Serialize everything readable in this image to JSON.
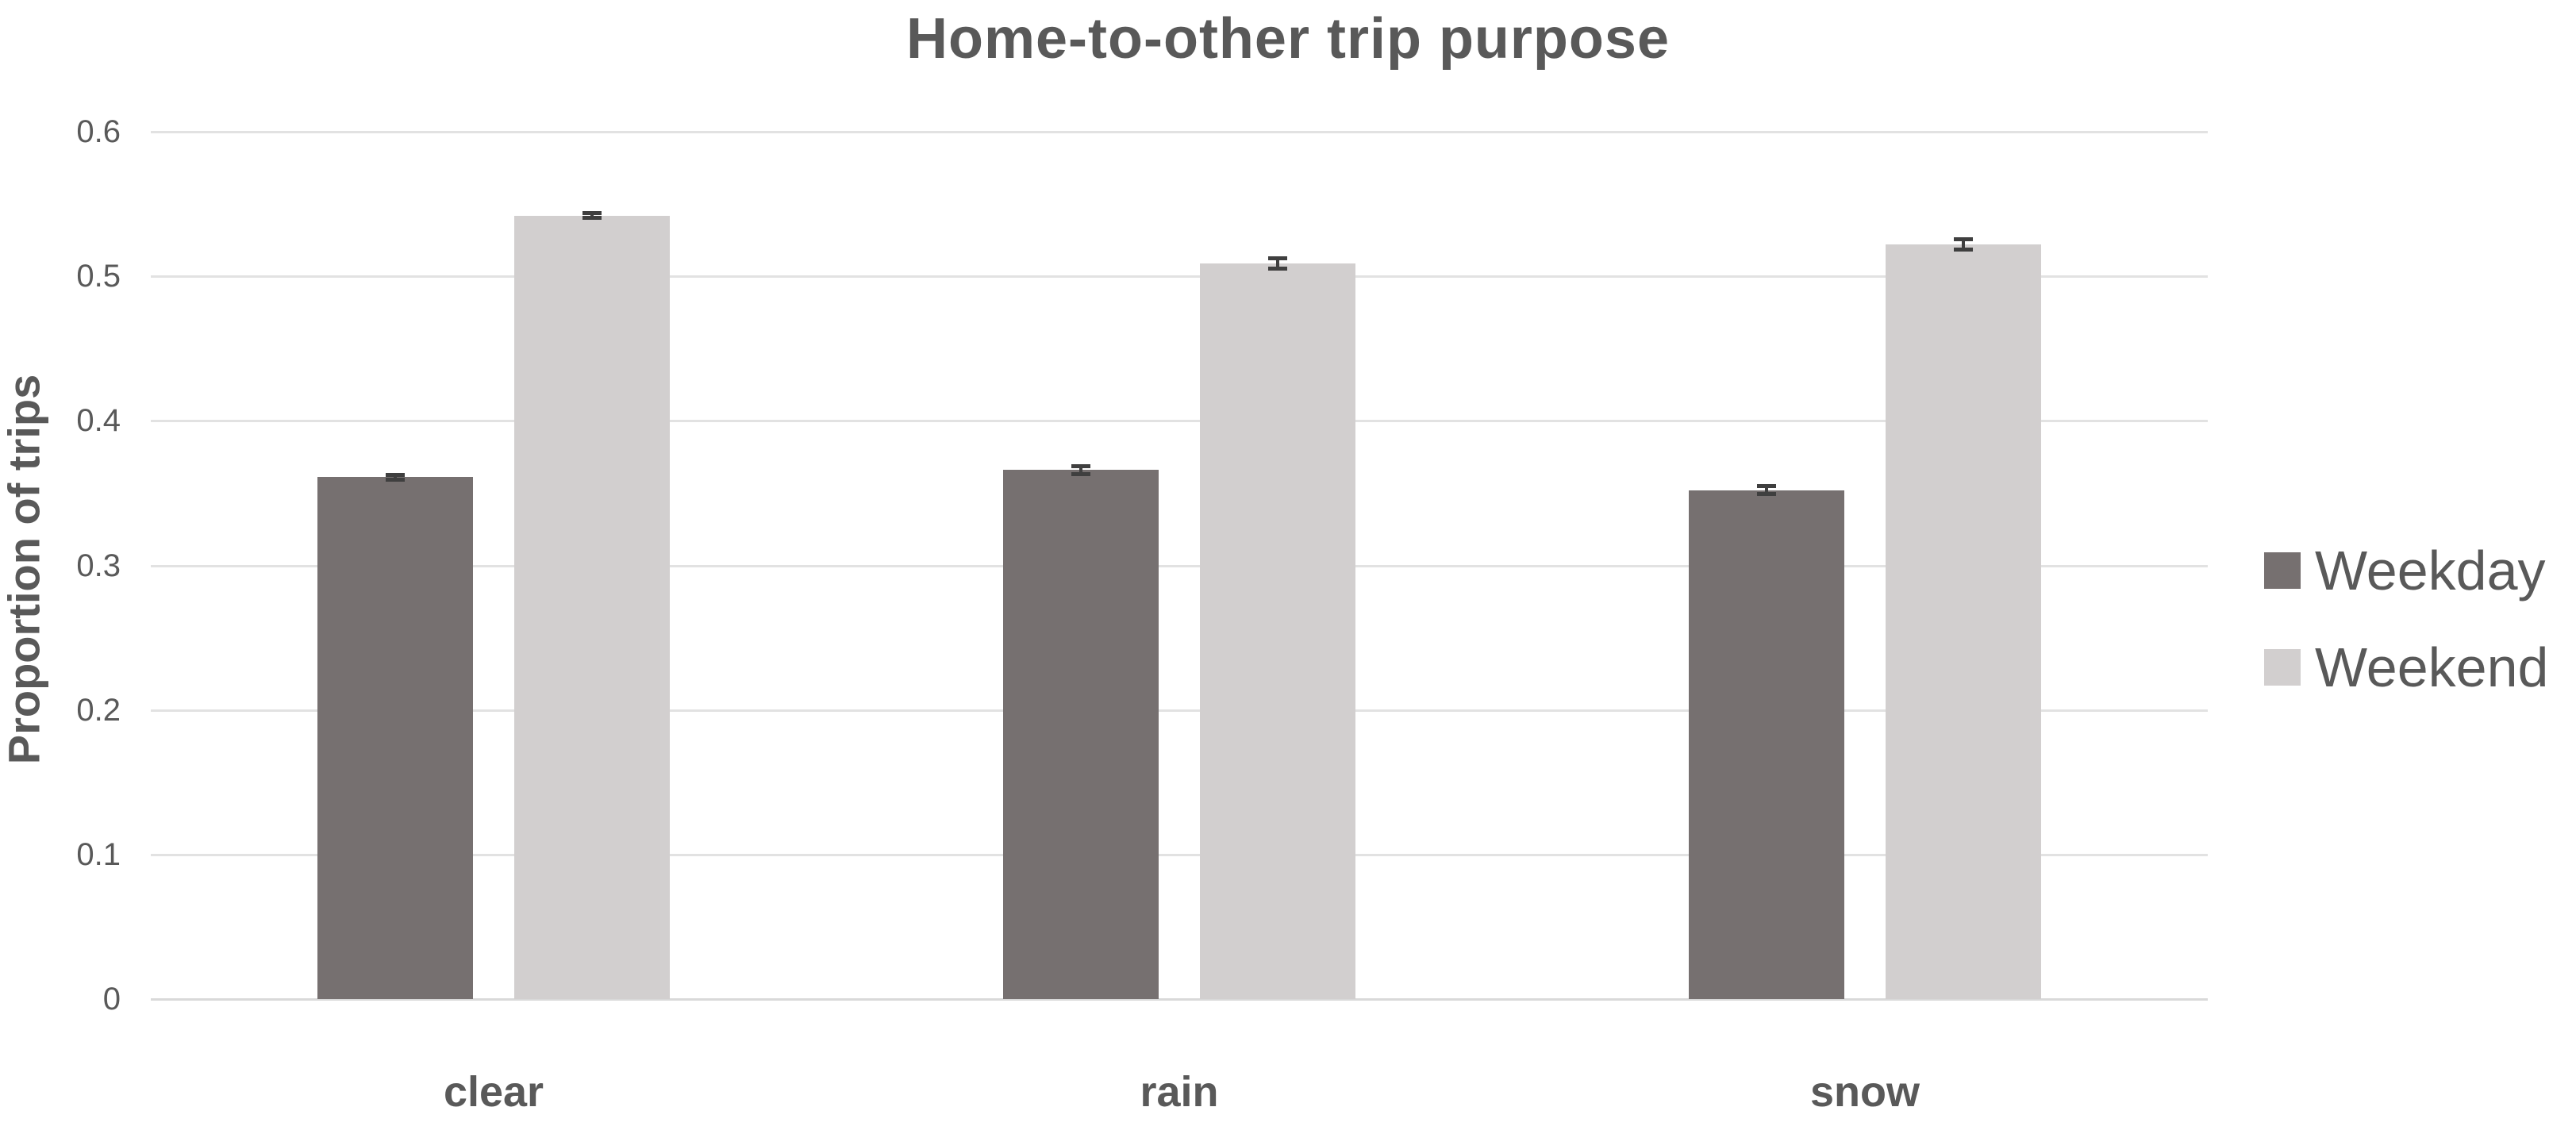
{
  "chart_data": {
    "type": "bar",
    "title": "Home-to-other trip purpose",
    "xlabel": "",
    "ylabel": "Proportion of trips",
    "ylim": [
      0,
      0.6
    ],
    "ytick_labels": [
      "0",
      "0.1",
      "0.2",
      "0.3",
      "0.4",
      "0.5",
      "0.6"
    ],
    "categories": [
      "clear",
      "rain",
      "snow"
    ],
    "series": [
      {
        "name": "Weekday",
        "color": "#767070",
        "values": [
          0.361,
          0.366,
          0.352
        ],
        "errors": [
          0.003,
          0.004,
          0.004
        ]
      },
      {
        "name": "Weekend",
        "color": "#d2cfcf",
        "values": [
          0.542,
          0.509,
          0.522
        ],
        "errors": [
          0.003,
          0.005,
          0.005
        ]
      }
    ],
    "error_bar_color": "#3f3f3f",
    "grid": true,
    "legend_position": "right"
  },
  "colors": {
    "text": "#595959",
    "gridline": "#e2e2e2",
    "baseline": "#d9d9d9",
    "background": "#ffffff"
  }
}
